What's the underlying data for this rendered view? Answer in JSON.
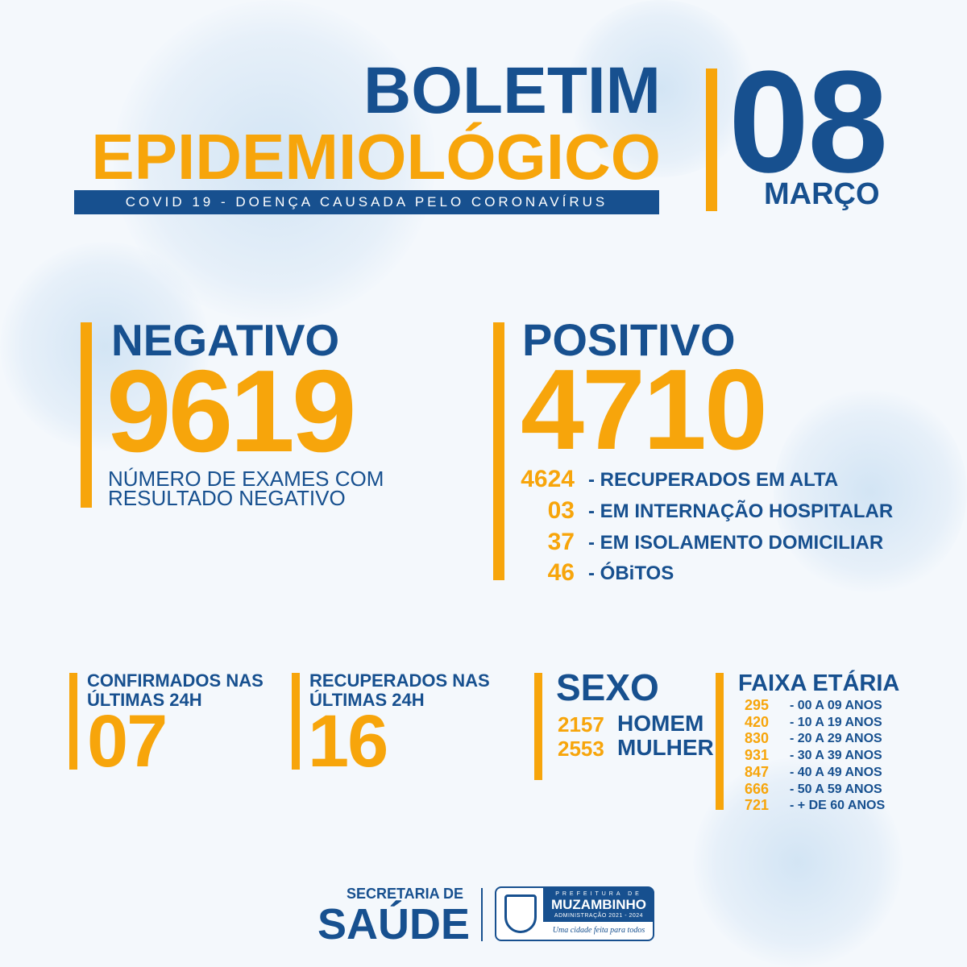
{
  "header": {
    "title_line1": "BOLETIM",
    "title_line2": "EPIDEMIOLÓGICO",
    "banner": "COVID 19 - DOENÇA CAUSADA PELO CORONAVÍRUS",
    "day": "08",
    "month": "MARÇO"
  },
  "negativo": {
    "label": "NEGATIVO",
    "value": "9619",
    "caption_line1": "NÚMERO DE EXAMES COM",
    "caption_line2": "RESULTADO NEGATIVO"
  },
  "positivo": {
    "label": "POSITIVO",
    "value": "4710",
    "rows": [
      {
        "value": "4624",
        "label": "- RECUPERADOS EM ALTA"
      },
      {
        "value": "03",
        "label": "- EM INTERNAÇÃO HOSPITALAR"
      },
      {
        "value": "37",
        "label": "- EM ISOLAMENTO DOMICILIAR"
      },
      {
        "value": "46",
        "label": "- ÓBiTOS"
      }
    ]
  },
  "confirmados": {
    "line1": "CONFIRMADOS NAS",
    "line2": "ÚLTIMAS 24H",
    "value": "07"
  },
  "recuperados": {
    "line1": "RECUPERADOS NAS",
    "line2": "ÚLTIMAS 24H",
    "value": "16"
  },
  "sexo": {
    "label": "SEXO",
    "rows": [
      {
        "value": "2157",
        "label": "HOMEM"
      },
      {
        "value": "2553",
        "label": "MULHER"
      }
    ]
  },
  "faixa": {
    "label": "FAIXA ETÁRIA",
    "rows": [
      {
        "value": "295",
        "label": "- 00 A 09 ANOS"
      },
      {
        "value": "420",
        "label": "- 10 A 19 ANOS"
      },
      {
        "value": "830",
        "label": "- 20 A 29 ANOS"
      },
      {
        "value": "931",
        "label": "- 30 A 39 ANOS"
      },
      {
        "value": "847",
        "label": "- 40 A 49 ANOS"
      },
      {
        "value": "666",
        "label": "- 50 A 59 ANOS"
      },
      {
        "value": "721",
        "label": "- + DE 60 ANOS"
      }
    ]
  },
  "footer": {
    "secretaria": "SECRETARIA DE",
    "saude": "SAÚDE",
    "logo": {
      "prefeitura": "PREFEITURA DE",
      "city": "MUZAMBINHO",
      "admin": "ADMINISTRAÇÃO 2021 - 2024",
      "slogan": "Uma cidade feita para todos"
    }
  },
  "colors": {
    "blue": "#17508f",
    "orange": "#f7a50b"
  }
}
